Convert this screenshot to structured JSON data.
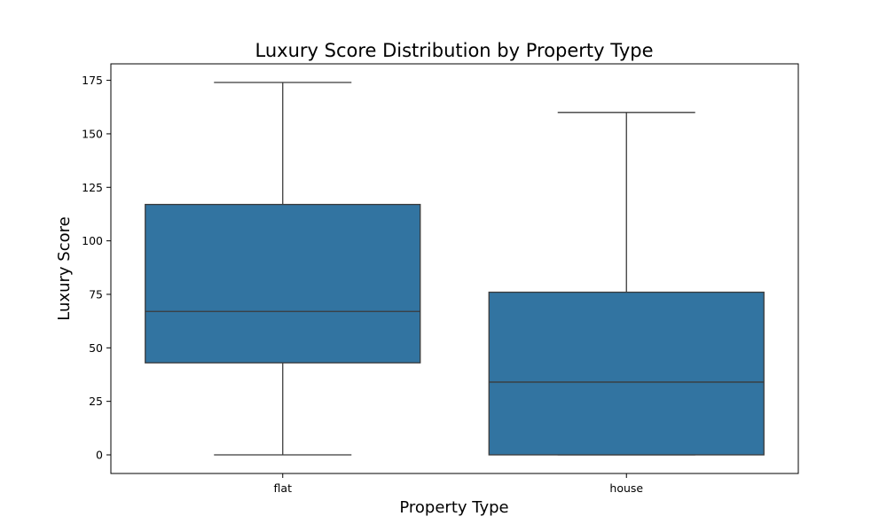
{
  "chart_data": {
    "type": "box",
    "title": "Luxury Score Distribution by Property Type",
    "xlabel": "Property Type",
    "ylabel": "Luxury Score",
    "ylim": [
      -8.7,
      182.7
    ],
    "yticks": [
      0,
      25,
      50,
      75,
      100,
      125,
      150,
      175
    ],
    "grid": false,
    "legend": "none",
    "box_color": "#3274a1",
    "line_color": "#3b3b3b",
    "categories": [
      "flat",
      "house"
    ],
    "boxes": [
      {
        "category": "flat",
        "whisker_low": 0,
        "q1": 43,
        "median": 67,
        "q3": 117,
        "whisker_high": 174
      },
      {
        "category": "house",
        "whisker_low": 0,
        "q1": 0,
        "median": 34,
        "q3": 76,
        "whisker_high": 160
      }
    ]
  }
}
